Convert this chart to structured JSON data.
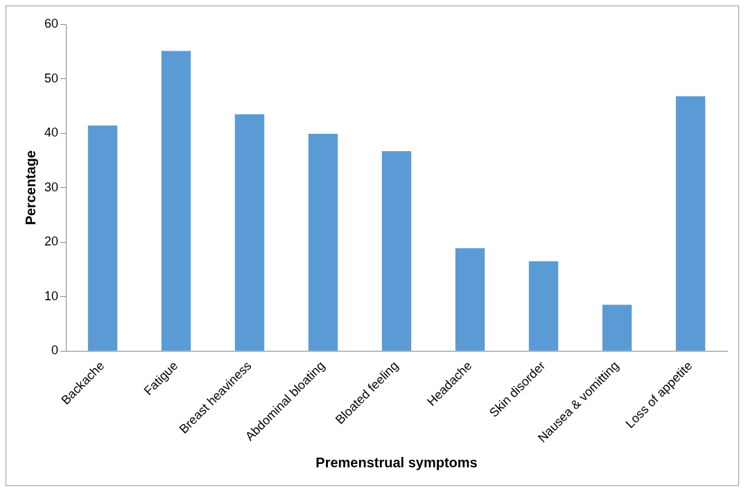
{
  "chart_data": {
    "type": "bar",
    "xlabel": "Premenstrual symptoms",
    "ylabel": "Percentage",
    "categories": [
      "Backache",
      "Fatigue",
      "Breast heaviness",
      "Abdominal bloating",
      "Bloated feeling",
      "Headache",
      "Skin disorder",
      "Nausea & vomitting",
      "Loss of appetite"
    ],
    "values": [
      41.4,
      55.1,
      43.5,
      39.9,
      36.7,
      18.9,
      16.5,
      8.5,
      46.8
    ],
    "color": "#5b9bd5",
    "ylim": [
      0,
      60
    ],
    "yticks": [
      0,
      10,
      20,
      30,
      40,
      50,
      60
    ],
    "grid": false,
    "legend": false
  }
}
